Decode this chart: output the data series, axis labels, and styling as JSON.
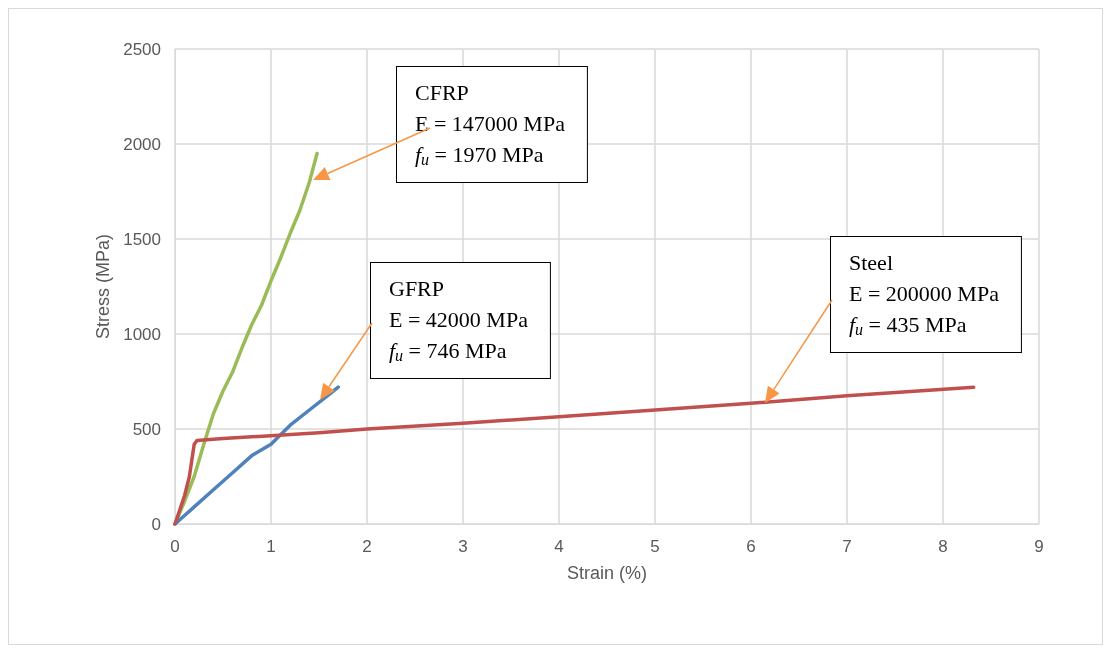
{
  "chart_data": {
    "type": "line",
    "xlabel": "Strain (%)",
    "ylabel": "Stress (MPa)",
    "xlim": [
      0,
      9
    ],
    "xticks": [
      0,
      1,
      2,
      3,
      4,
      5,
      6,
      7,
      8,
      9
    ],
    "ylim": [
      0,
      2500
    ],
    "yticks": [
      0,
      500,
      1000,
      1500,
      2000,
      2500
    ],
    "grid": true,
    "marker": "none",
    "line_style": "solid",
    "series": [
      {
        "color": "#9bbb59",
        "x": [
          0,
          0.1,
          0.2,
          0.3,
          0.4,
          0.5,
          0.6,
          0.7,
          0.8,
          0.9,
          1.0,
          1.1,
          1.2,
          1.3,
          1.4,
          1.48
        ],
        "values": [
          0,
          120,
          250,
          420,
          580,
          700,
          800,
          930,
          1050,
          1150,
          1280,
          1400,
          1530,
          1650,
          1800,
          1950
        ]
      },
      {
        "color": "#4f81bd",
        "x": [
          0,
          0.2,
          0.4,
          0.6,
          0.8,
          1.0,
          1.1,
          1.2,
          1.4,
          1.6,
          1.7
        ],
        "values": [
          0,
          90,
          180,
          270,
          360,
          420,
          470,
          520,
          600,
          680,
          720
        ]
      },
      {
        "color": "#c0504d",
        "x": [
          0,
          0.1,
          0.15,
          0.2,
          0.23,
          0.5,
          1,
          1.5,
          2,
          3,
          4,
          5,
          6,
          7,
          8.32
        ],
        "values": [
          0,
          150,
          250,
          420,
          440,
          450,
          465,
          480,
          500,
          530,
          565,
          600,
          635,
          675,
          720
        ]
      }
    ],
    "annotations": [
      "CFRP\nE = 147000 MPa\nf$_{u}$ = 1970 MPa",
      "GFRP\nE = 42000 MPa\nf$_{u}$ = 746 MPa",
      "Steel\nE = 200000 MPa\nf$_{u}$ = 435 MPa"
    ]
  }
}
